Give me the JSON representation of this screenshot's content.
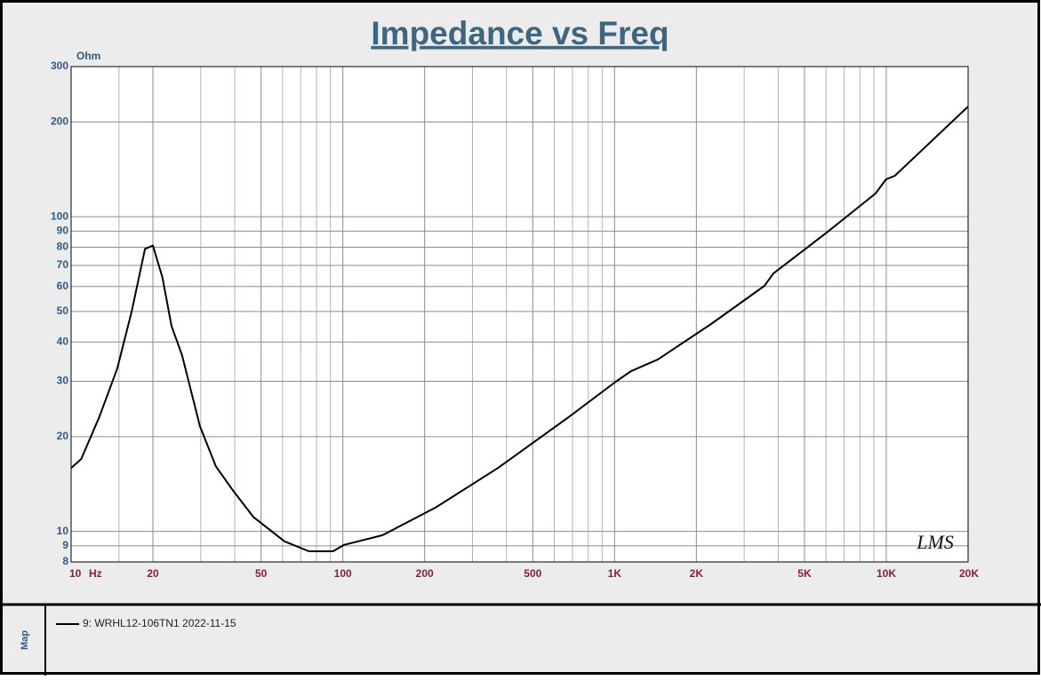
{
  "chart_data": {
    "type": "line",
    "title": "Impedance vs Freq",
    "y_unit": "Ohm",
    "x_unit": "Hz",
    "watermark": "LMS",
    "side_label": "Map",
    "x_scale": "log",
    "y_scale": "log",
    "grid": true,
    "xlim": [
      10,
      20000
    ],
    "ylim": [
      8,
      300
    ],
    "xticks": [
      10,
      20,
      50,
      100,
      200,
      500,
      {
        "value": 1000,
        "label": "1K"
      },
      {
        "value": 2000,
        "label": "2K"
      },
      {
        "value": 5000,
        "label": "5K"
      },
      {
        "value": 10000,
        "label": "10K"
      },
      {
        "value": 20000,
        "label": "20K"
      }
    ],
    "x_minor_grid": [
      15,
      30,
      40,
      60,
      70,
      80,
      90,
      300,
      400,
      600,
      700,
      800,
      900,
      3000,
      4000,
      6000,
      7000,
      8000,
      9000
    ],
    "yticks": [
      8,
      9,
      10,
      20,
      30,
      40,
      50,
      60,
      70,
      80,
      90,
      100,
      200,
      300
    ],
    "x": [
      10,
      10.9,
      12.7,
      14.8,
      16.7,
      18.7,
      20,
      21.7,
      23.4,
      25.6,
      29.8,
      34.1,
      39.4,
      46.9,
      61,
      75,
      92,
      101,
      140,
      219,
      372,
      679,
      1010,
      1150,
      1443,
      2266,
      3560,
      3840,
      6030,
      9120,
      9980,
      10760,
      20000
    ],
    "series": [
      {
        "name": "9: WRHL12-106TN1 2022-11-15",
        "color": "#000000",
        "values": [
          15.9,
          17.0,
          23.1,
          33,
          50,
          79,
          81,
          64,
          45,
          36.3,
          21.6,
          16.1,
          13.5,
          11.1,
          9.3,
          8.65,
          8.65,
          9.06,
          9.73,
          11.9,
          15.9,
          23.1,
          29.9,
          32.3,
          35.2,
          45.6,
          60.3,
          66,
          89,
          118.5,
          131.5,
          135,
          224
        ]
      }
    ]
  }
}
